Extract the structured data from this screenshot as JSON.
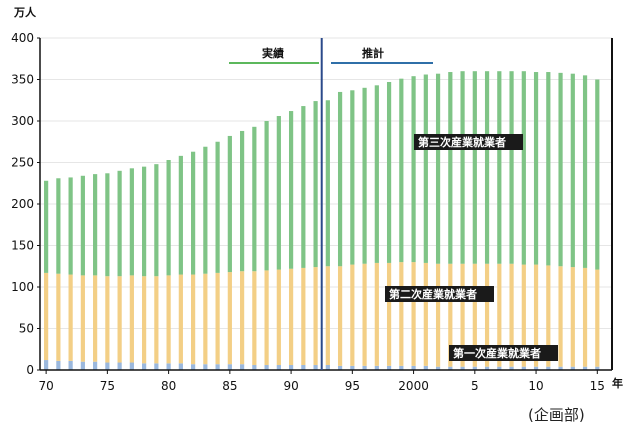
{
  "chart_data": {
    "type": "bar",
    "stacked": true,
    "y_unit": "万人",
    "x_unit": "年",
    "ylim": [
      0,
      400
    ],
    "yticks": [
      0,
      50,
      100,
      150,
      200,
      250,
      300,
      350,
      400
    ],
    "xticks": [
      {
        "year": 1970,
        "label": "70"
      },
      {
        "year": 1975,
        "label": "75"
      },
      {
        "year": 1980,
        "label": "80"
      },
      {
        "year": 1985,
        "label": "85"
      },
      {
        "year": 1990,
        "label": "90"
      },
      {
        "year": 1995,
        "label": "95"
      },
      {
        "year": 2000,
        "label": "2000"
      },
      {
        "year": 2005,
        "label": "5"
      },
      {
        "year": 2010,
        "label": "10"
      },
      {
        "year": 2015,
        "label": "15"
      }
    ],
    "categories": [
      1970,
      1971,
      1972,
      1973,
      1974,
      1975,
      1976,
      1977,
      1978,
      1979,
      1980,
      1981,
      1982,
      1983,
      1984,
      1985,
      1986,
      1987,
      1988,
      1989,
      1990,
      1991,
      1992,
      1993,
      1994,
      1995,
      1996,
      1997,
      1998,
      1999,
      2000,
      2001,
      2002,
      2003,
      2004,
      2005,
      2006,
      2007,
      2008,
      2009,
      2010,
      2011,
      2012,
      2013,
      2014,
      2015
    ],
    "series": [
      {
        "name": "第一次産業就業者",
        "color": "#9bb8dd",
        "values": [
          12,
          11,
          11,
          10,
          10,
          9,
          9,
          9,
          8,
          8,
          8,
          8,
          7,
          7,
          7,
          7,
          7,
          6,
          6,
          6,
          6,
          6,
          6,
          6,
          5,
          5,
          5,
          5,
          5,
          5,
          5,
          5,
          4,
          4,
          4,
          4,
          4,
          4,
          4,
          4,
          4,
          4,
          4,
          4,
          4,
          4
        ]
      },
      {
        "name": "第二次産業就業者",
        "color": "#f3cf86",
        "values": [
          105,
          105,
          104,
          104,
          104,
          104,
          104,
          105,
          105,
          105,
          106,
          107,
          108,
          109,
          110,
          111,
          112,
          113,
          114,
          115,
          116,
          117,
          118,
          119,
          120,
          122,
          123,
          124,
          124,
          125,
          125,
          124,
          124,
          124,
          124,
          124,
          124,
          124,
          124,
          123,
          123,
          122,
          121,
          120,
          119,
          117
        ]
      },
      {
        "name": "第三次産業就業者",
        "color": "#7fc486",
        "values": [
          111,
          115,
          117,
          120,
          122,
          124,
          127,
          129,
          132,
          135,
          139,
          143,
          148,
          153,
          158,
          164,
          169,
          174,
          180,
          185,
          190,
          195,
          200,
          200,
          210,
          210,
          212,
          214,
          218,
          221,
          224,
          227,
          229,
          231,
          232,
          232,
          232,
          232,
          232,
          233,
          232,
          233,
          233,
          233,
          232,
          229
        ]
      }
    ],
    "phase_labels": {
      "actual": "実績",
      "forecast": "推計"
    },
    "divider_year": 1992.5
  },
  "source_note": "(企画部)"
}
